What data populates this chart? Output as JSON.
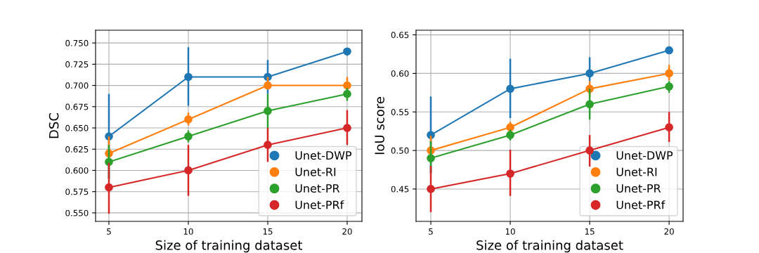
{
  "chart_data": [
    {
      "type": "line",
      "xlabel": "Size of training dataset",
      "ylabel": "DSC",
      "x": [
        5,
        10,
        15,
        20
      ],
      "xlim": [
        4.16,
        20.93
      ],
      "xticks": [
        5,
        10,
        15,
        20
      ],
      "ylim": [
        0.54,
        0.765
      ],
      "yticks": [
        {
          "value": 0.55,
          "label": "0.550"
        },
        {
          "value": 0.575,
          "label": "0.575"
        },
        {
          "value": 0.6,
          "label": "0.600"
        },
        {
          "value": 0.625,
          "label": "0.625"
        },
        {
          "value": 0.65,
          "label": "0.650"
        },
        {
          "value": 0.675,
          "label": "0.675"
        },
        {
          "value": 0.7,
          "label": "0.700"
        },
        {
          "value": 0.725,
          "label": "0.725"
        },
        {
          "value": 0.75,
          "label": "0.750"
        }
      ],
      "grid": true,
      "legend": "bottom right",
      "marker": "circle",
      "line_style": "solid",
      "series": [
        {
          "name": "Unet-DWP",
          "color": "#1f77b4",
          "values": [
            0.64,
            0.71,
            0.71,
            0.74
          ],
          "errors": [
            [
              0.59,
              0.69
            ],
            [
              0.676,
              0.745
            ],
            [
              0.69,
              0.73
            ],
            [
              0.735,
              0.744
            ]
          ]
        },
        {
          "name": "Unet-RI",
          "color": "#ff7f0e",
          "values": [
            0.62,
            0.66,
            0.7,
            0.7
          ],
          "errors": [
            [
              0.62,
              0.64
            ],
            [
              0.653,
              0.668
            ],
            [
              0.7,
              0.71
            ],
            [
              0.692,
              0.71
            ]
          ]
        },
        {
          "name": "Unet-PR",
          "color": "#2ca02c",
          "values": [
            0.61,
            0.64,
            0.67,
            0.69
          ],
          "errors": [
            [
              0.59,
              0.63
            ],
            [
              0.633,
              0.647
            ],
            [
              0.65,
              0.69
            ],
            [
              0.682,
              0.697
            ]
          ]
        },
        {
          "name": "Unet-PRf",
          "color": "#d62728",
          "values": [
            0.58,
            0.6,
            0.63,
            0.65
          ],
          "errors": [
            [
              0.549,
              0.609
            ],
            [
              0.57,
              0.63
            ],
            [
              0.61,
              0.65
            ],
            [
              0.63,
              0.671
            ]
          ]
        }
      ]
    },
    {
      "type": "line",
      "xlabel": "Size of training dataset",
      "ylabel": "IoU score",
      "x": [
        5,
        10,
        15,
        20
      ],
      "xlim": [
        4.07,
        20.88
      ],
      "xticks": [
        5,
        10,
        15,
        20
      ],
      "ylim": [
        0.408,
        0.656
      ],
      "yticks": [
        {
          "value": 0.45,
          "label": "0.45"
        },
        {
          "value": 0.5,
          "label": "0.50"
        },
        {
          "value": 0.55,
          "label": "0.55"
        },
        {
          "value": 0.6,
          "label": "0.60"
        },
        {
          "value": 0.65,
          "label": "0.65"
        }
      ],
      "grid": true,
      "legend": "bottom right",
      "marker": "circle",
      "line_style": "solid",
      "series": [
        {
          "name": "Unet-DWP",
          "color": "#1f77b4",
          "values": [
            0.52,
            0.58,
            0.6,
            0.63
          ],
          "errors": [
            [
              0.47,
              0.57
            ],
            [
              0.542,
              0.619
            ],
            [
              0.59,
              0.621
            ],
            [
              0.627,
              0.634
            ]
          ]
        },
        {
          "name": "Unet-RI",
          "color": "#ff7f0e",
          "values": [
            0.5,
            0.53,
            0.58,
            0.6
          ],
          "errors": [
            [
              0.5,
              0.519
            ],
            [
              0.524,
              0.537
            ],
            [
              0.57,
              0.59
            ],
            [
              0.591,
              0.611
            ]
          ]
        },
        {
          "name": "Unet-PR",
          "color": "#2ca02c",
          "values": [
            0.49,
            0.52,
            0.56,
            0.583
          ],
          "errors": [
            [
              0.471,
              0.512
            ],
            [
              0.513,
              0.527
            ],
            [
              0.54,
              0.58
            ],
            [
              0.575,
              0.59
            ]
          ]
        },
        {
          "name": "Unet-PRf",
          "color": "#d62728",
          "values": [
            0.45,
            0.47,
            0.5,
            0.53
          ],
          "errors": [
            [
              0.42,
              0.48
            ],
            [
              0.441,
              0.501
            ],
            [
              0.479,
              0.52
            ],
            [
              0.511,
              0.55
            ]
          ]
        }
      ]
    }
  ]
}
